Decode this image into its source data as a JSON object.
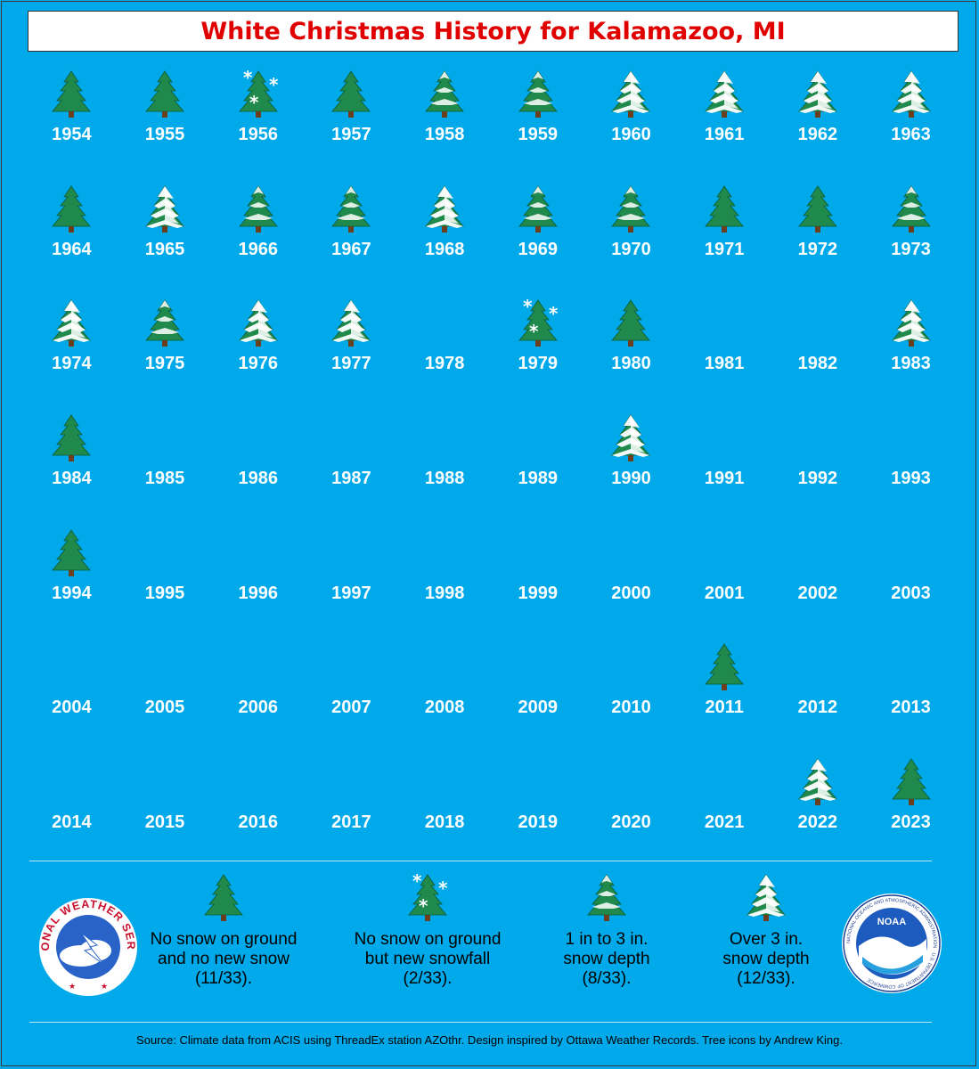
{
  "title": "White Christmas History for Kalamazoo, MI",
  "colors": {
    "background": "#00a9ea",
    "title_text": "#e00000",
    "tree_green": "#1f8a4c",
    "snow": "#ffffff"
  },
  "years": [
    {
      "year": "1954",
      "type": "green"
    },
    {
      "year": "1955",
      "type": "green"
    },
    {
      "year": "1956",
      "type": "snowfall"
    },
    {
      "year": "1957",
      "type": "green"
    },
    {
      "year": "1958",
      "type": "light"
    },
    {
      "year": "1959",
      "type": "light"
    },
    {
      "year": "1960",
      "type": "heavy"
    },
    {
      "year": "1961",
      "type": "heavy"
    },
    {
      "year": "1962",
      "type": "heavy"
    },
    {
      "year": "1963",
      "type": "heavy"
    },
    {
      "year": "1964",
      "type": "green"
    },
    {
      "year": "1965",
      "type": "heavy"
    },
    {
      "year": "1966",
      "type": "light"
    },
    {
      "year": "1967",
      "type": "light"
    },
    {
      "year": "1968",
      "type": "heavy"
    },
    {
      "year": "1969",
      "type": "light"
    },
    {
      "year": "1970",
      "type": "light"
    },
    {
      "year": "1971",
      "type": "green"
    },
    {
      "year": "1972",
      "type": "green"
    },
    {
      "year": "1973",
      "type": "light"
    },
    {
      "year": "1974",
      "type": "heavy"
    },
    {
      "year": "1975",
      "type": "light"
    },
    {
      "year": "1976",
      "type": "heavy"
    },
    {
      "year": "1977",
      "type": "heavy"
    },
    {
      "year": "1978",
      "type": "none"
    },
    {
      "year": "1979",
      "type": "snowfall"
    },
    {
      "year": "1980",
      "type": "green"
    },
    {
      "year": "1981",
      "type": "none"
    },
    {
      "year": "1982",
      "type": "none"
    },
    {
      "year": "1983",
      "type": "heavy"
    },
    {
      "year": "1984",
      "type": "green"
    },
    {
      "year": "1985",
      "type": "none"
    },
    {
      "year": "1986",
      "type": "none"
    },
    {
      "year": "1987",
      "type": "none"
    },
    {
      "year": "1988",
      "type": "none"
    },
    {
      "year": "1989",
      "type": "none"
    },
    {
      "year": "1990",
      "type": "heavy"
    },
    {
      "year": "1991",
      "type": "none"
    },
    {
      "year": "1992",
      "type": "none"
    },
    {
      "year": "1993",
      "type": "none"
    },
    {
      "year": "1994",
      "type": "green"
    },
    {
      "year": "1995",
      "type": "none"
    },
    {
      "year": "1996",
      "type": "none"
    },
    {
      "year": "1997",
      "type": "none"
    },
    {
      "year": "1998",
      "type": "none"
    },
    {
      "year": "1999",
      "type": "none"
    },
    {
      "year": "2000",
      "type": "none"
    },
    {
      "year": "2001",
      "type": "none"
    },
    {
      "year": "2002",
      "type": "none"
    },
    {
      "year": "2003",
      "type": "none"
    },
    {
      "year": "2004",
      "type": "none"
    },
    {
      "year": "2005",
      "type": "none"
    },
    {
      "year": "2006",
      "type": "none"
    },
    {
      "year": "2007",
      "type": "none"
    },
    {
      "year": "2008",
      "type": "none"
    },
    {
      "year": "2009",
      "type": "none"
    },
    {
      "year": "2010",
      "type": "none"
    },
    {
      "year": "2011",
      "type": "green"
    },
    {
      "year": "2012",
      "type": "none"
    },
    {
      "year": "2013",
      "type": "none"
    },
    {
      "year": "2014",
      "type": "none"
    },
    {
      "year": "2015",
      "type": "none"
    },
    {
      "year": "2016",
      "type": "none"
    },
    {
      "year": "2017",
      "type": "none"
    },
    {
      "year": "2018",
      "type": "none"
    },
    {
      "year": "2019",
      "type": "none"
    },
    {
      "year": "2020",
      "type": "none"
    },
    {
      "year": "2021",
      "type": "none"
    },
    {
      "year": "2022",
      "type": "heavy"
    },
    {
      "year": "2023",
      "type": "green"
    }
  ],
  "legend": [
    {
      "type": "green",
      "label": "No snow on ground and no new snow (11/33)."
    },
    {
      "type": "snowfall",
      "label": "No snow on ground but new snowfall (2/33)."
    },
    {
      "type": "light",
      "label": "1 in to 3 in. snow depth (8/33)."
    },
    {
      "type": "heavy",
      "label": "Over 3 in. snow depth (12/33)."
    }
  ],
  "logos": {
    "nws_text": "NATIONAL WEATHER SERVICE",
    "noaa_text": "NOAA",
    "noaa_ring_text": "NATIONAL OCEANIC AND ATMOSPHERIC ADMINISTRATION · U.S. DEPARTMENT OF COMMERCE"
  },
  "source": "Source: Climate data from ACIS using ThreadEx station AZOthr. Design inspired by Ottawa Weather Records. Tree icons by Andrew King."
}
